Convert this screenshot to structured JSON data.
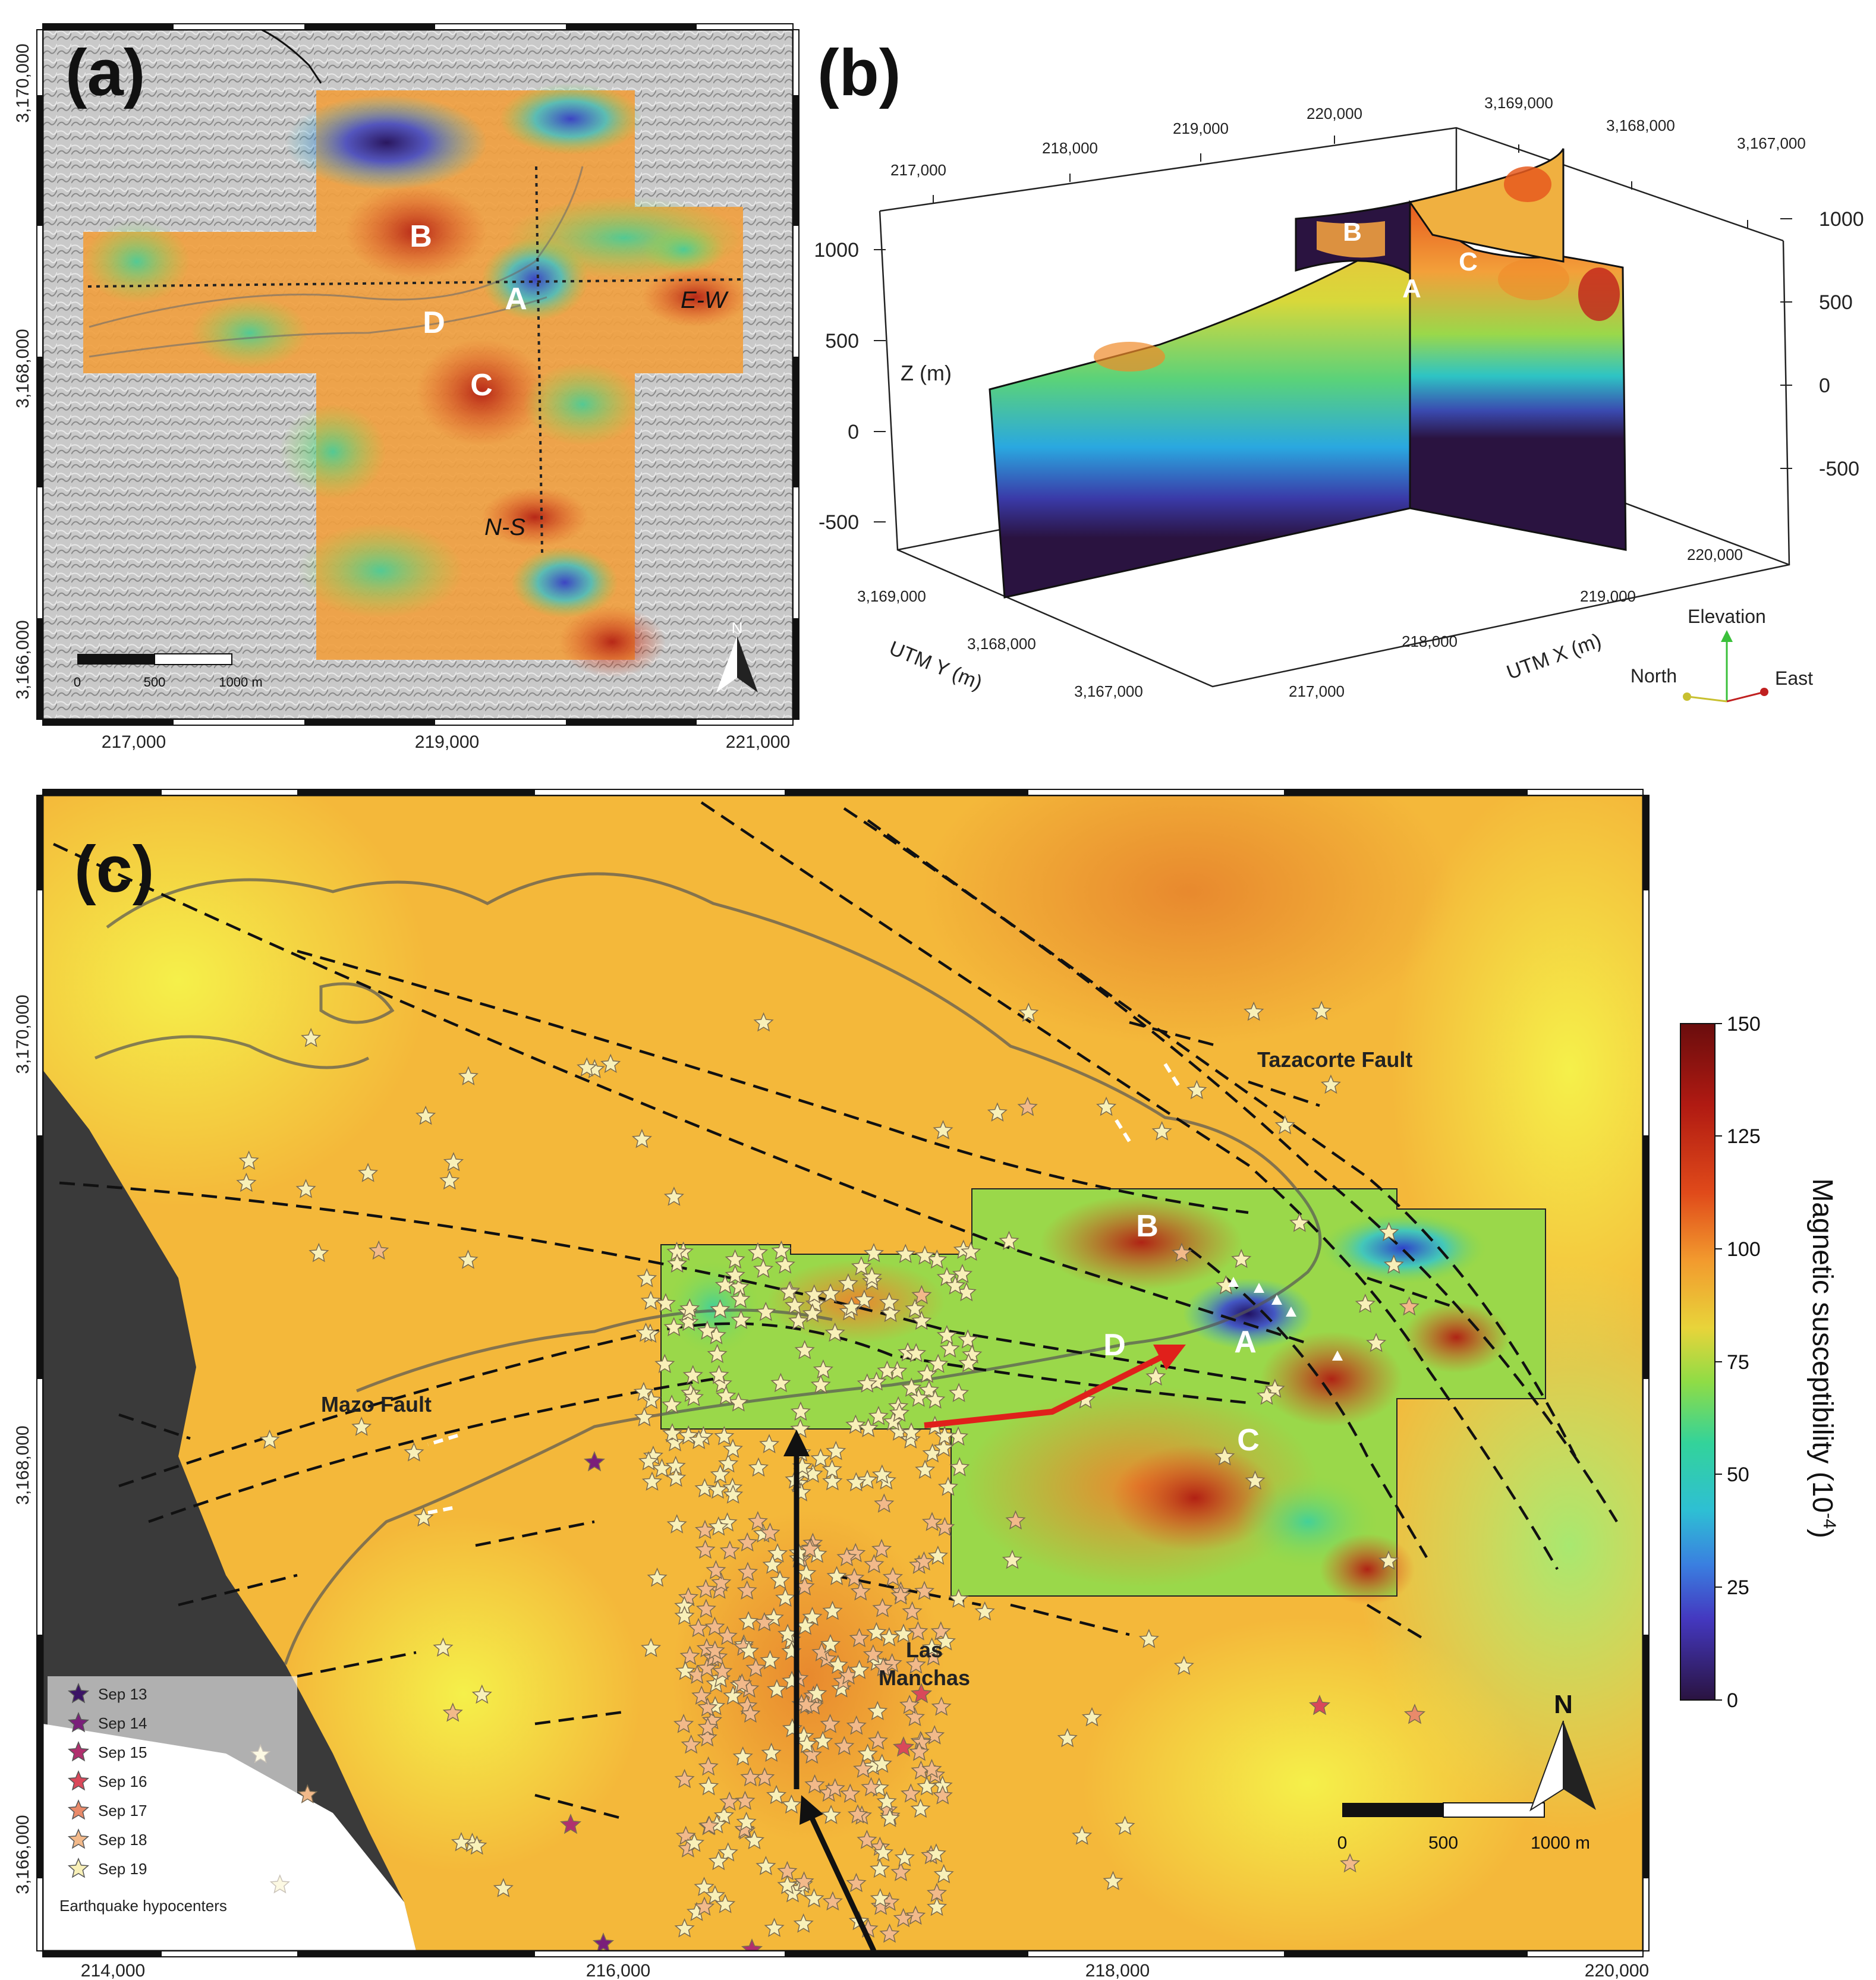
{
  "panel_a": {
    "tag": "(a)",
    "y_ticks": [
      "3,170,000",
      "3,168,000",
      "3,166,000"
    ],
    "x_ticks": [
      "217,000",
      "219,000",
      "221,000"
    ],
    "labels": {
      "A": "A",
      "B": "B",
      "C": "C",
      "D": "D"
    },
    "profiles": {
      "ew": "E-W",
      "ns": "N-S"
    },
    "scale": {
      "ticks": [
        "0",
        "500",
        "1000 m"
      ]
    },
    "north": "N"
  },
  "panel_b": {
    "tag": "(b)",
    "top_x": [
      "217,000",
      "218,000",
      "219,000",
      "220,000"
    ],
    "top_y": [
      "3,169,000",
      "3,168,000",
      "3,167,000"
    ],
    "z_left": [
      "1000",
      "500",
      "0",
      "-500"
    ],
    "z_right": [
      "1000",
      "500",
      "0",
      "-500"
    ],
    "z_label": "Z (m)",
    "bottom_y": [
      "3,169,000",
      "3,168,000",
      "3,167,000"
    ],
    "bottom_x": [
      "217,000",
      "218,000",
      "219,000",
      "220,000"
    ],
    "utm_y": "UTM Y (m)",
    "utm_x": "UTM X (m)",
    "labels": {
      "A": "A",
      "B": "B",
      "C": "C"
    },
    "axes": {
      "elevation": "Elevation",
      "north": "North",
      "east": "East"
    }
  },
  "panel_c": {
    "tag": "(c)",
    "y_ticks": [
      "3,170,000",
      "3,168,000",
      "3,166,000"
    ],
    "x_ticks": [
      "214,000",
      "216,000",
      "218,000",
      "220,000"
    ],
    "labels": {
      "A": "A",
      "B": "B",
      "C": "C",
      "D": "D"
    },
    "faults": {
      "tazacorte": "Tazacorte Fault",
      "mazo": "Mazo Fault"
    },
    "place": {
      "line1": "Las",
      "line2": "Manchas"
    },
    "legend": {
      "title": "Earthquake hypocenters",
      "items": [
        {
          "label": "Sep 13",
          "color": "#3b1466"
        },
        {
          "label": "Sep 14",
          "color": "#7a1f7a"
        },
        {
          "label": "Sep 15",
          "color": "#b0306e"
        },
        {
          "label": "Sep 16",
          "color": "#d9485a"
        },
        {
          "label": "Sep 17",
          "color": "#e98a6a"
        },
        {
          "label": "Sep 18",
          "color": "#f2b98a"
        },
        {
          "label": "Sep 19",
          "color": "#f8f0b8"
        }
      ]
    },
    "scale": {
      "ticks": [
        "0",
        "500",
        "1000 m"
      ]
    },
    "north": "N",
    "colorbar": {
      "ticks": [
        "150",
        "125",
        "100",
        "75",
        "50",
        "25",
        "0"
      ],
      "title": "Magnetic susceptibility (10",
      "exponent": "-4",
      "title_end": ")",
      "range": [
        0,
        150
      ]
    }
  },
  "colors": {
    "high": "#c0221b",
    "orange": "#f0a030",
    "yellow": "#f5e93a",
    "green": "#7fd54a",
    "cyan": "#33c9c4",
    "blue": "#3a5fd8",
    "low": "#2a1340",
    "fault": "#111111",
    "red_arrow": "#e0201b"
  }
}
